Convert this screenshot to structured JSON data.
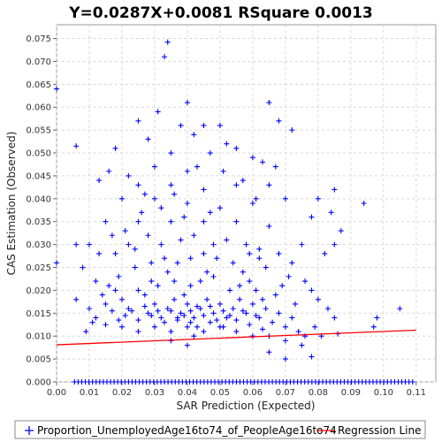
{
  "chart_data": {
    "type": "scatter",
    "title": "Y=0.0287X+0.0081    RSquare 0.0013",
    "xlabel": "SAR Prediction (Expected)",
    "ylabel": "CAS Estimation (Observed)",
    "xlim": [
      0.0,
      0.116
    ],
    "ylim": [
      0.0,
      0.078
    ],
    "xticks": [
      "0.00",
      "0.01",
      "0.02",
      "0.03",
      "0.04",
      "0.05",
      "0.06",
      "0.07",
      "0.08",
      "0.09",
      "0.10",
      "0.11"
    ],
    "xtick_values": [
      0.0,
      0.01,
      0.02,
      0.03,
      0.04,
      0.05,
      0.06,
      0.07,
      0.08,
      0.09,
      0.1,
      0.11
    ],
    "yticks": [
      "0.000",
      "0.005",
      "0.010",
      "0.015",
      "0.020",
      "0.025",
      "0.030",
      "0.035",
      "0.040",
      "0.045",
      "0.050",
      "0.055",
      "0.060",
      "0.065",
      "0.070",
      "0.075"
    ],
    "ytick_values": [
      0.0,
      0.005,
      0.01,
      0.015,
      0.02,
      0.025,
      0.03,
      0.035,
      0.04,
      0.045,
      0.05,
      0.055,
      0.06,
      0.065,
      0.07,
      0.075
    ],
    "grid": true,
    "legend_position": "bottom",
    "series": [
      {
        "name": "Proportion_UnemployedAge16to74_of_PeopleAge16to74",
        "kind": "scatter",
        "marker": "plus",
        "color": "#0000ff",
        "points": [
          [
            0.0,
            0.064
          ],
          [
            0.0,
            0.026
          ],
          [
            0.006,
            0.0515
          ],
          [
            0.034,
            0.0742
          ],
          [
            0.033,
            0.071
          ],
          [
            0.04,
            0.061
          ],
          [
            0.065,
            0.061
          ],
          [
            0.031,
            0.059
          ],
          [
            0.025,
            0.057
          ],
          [
            0.038,
            0.056
          ],
          [
            0.045,
            0.056
          ],
          [
            0.05,
            0.056
          ],
          [
            0.068,
            0.057
          ],
          [
            0.072,
            0.055
          ],
          [
            0.042,
            0.054
          ],
          [
            0.028,
            0.053
          ],
          [
            0.052,
            0.052
          ],
          [
            0.063,
            0.048
          ],
          [
            0.018,
            0.051
          ],
          [
            0.035,
            0.05
          ],
          [
            0.047,
            0.05
          ],
          [
            0.055,
            0.051
          ],
          [
            0.06,
            0.049
          ],
          [
            0.03,
            0.047
          ],
          [
            0.04,
            0.046
          ],
          [
            0.067,
            0.047
          ],
          [
            0.016,
            0.046
          ],
          [
            0.022,
            0.045
          ],
          [
            0.013,
            0.044
          ],
          [
            0.025,
            0.043
          ],
          [
            0.035,
            0.043
          ],
          [
            0.045,
            0.042
          ],
          [
            0.055,
            0.043
          ],
          [
            0.065,
            0.043
          ],
          [
            0.08,
            0.04
          ],
          [
            0.085,
            0.042
          ],
          [
            0.094,
            0.039
          ],
          [
            0.02,
            0.04
          ],
          [
            0.03,
            0.04
          ],
          [
            0.04,
            0.039
          ],
          [
            0.05,
            0.038
          ],
          [
            0.06,
            0.039
          ],
          [
            0.07,
            0.04
          ],
          [
            0.084,
            0.037
          ],
          [
            0.078,
            0.036
          ],
          [
            0.087,
            0.033
          ],
          [
            0.01,
            0.03
          ],
          [
            0.015,
            0.035
          ],
          [
            0.025,
            0.035
          ],
          [
            0.035,
            0.035
          ],
          [
            0.045,
            0.035
          ],
          [
            0.055,
            0.035
          ],
          [
            0.065,
            0.034
          ],
          [
            0.075,
            0.03
          ],
          [
            0.082,
            0.028
          ],
          [
            0.085,
            0.03
          ],
          [
            0.006,
            0.03
          ],
          [
            0.008,
            0.025
          ],
          [
            0.012,
            0.022
          ],
          [
            0.018,
            0.028
          ],
          [
            0.022,
            0.03
          ],
          [
            0.028,
            0.032
          ],
          [
            0.032,
            0.03
          ],
          [
            0.038,
            0.031
          ],
          [
            0.042,
            0.032
          ],
          [
            0.048,
            0.03
          ],
          [
            0.052,
            0.031
          ],
          [
            0.058,
            0.03
          ],
          [
            0.062,
            0.029
          ],
          [
            0.068,
            0.028
          ],
          [
            0.072,
            0.026
          ],
          [
            0.076,
            0.022
          ],
          [
            0.078,
            0.02
          ],
          [
            0.08,
            0.018
          ],
          [
            0.083,
            0.016
          ],
          [
            0.006,
            0.018
          ],
          [
            0.01,
            0.016
          ],
          [
            0.012,
            0.014
          ],
          [
            0.015,
            0.017
          ],
          [
            0.018,
            0.02
          ],
          [
            0.02,
            0.018
          ],
          [
            0.022,
            0.016
          ],
          [
            0.025,
            0.02
          ],
          [
            0.028,
            0.015
          ],
          [
            0.03,
            0.017
          ],
          [
            0.032,
            0.014
          ],
          [
            0.034,
            0.016
          ],
          [
            0.036,
            0.018
          ],
          [
            0.038,
            0.015
          ],
          [
            0.04,
            0.017
          ],
          [
            0.042,
            0.014
          ],
          [
            0.044,
            0.016
          ],
          [
            0.046,
            0.018
          ],
          [
            0.048,
            0.015
          ],
          [
            0.05,
            0.017
          ],
          [
            0.052,
            0.014
          ],
          [
            0.054,
            0.016
          ],
          [
            0.056,
            0.018
          ],
          [
            0.058,
            0.015
          ],
          [
            0.06,
            0.017
          ],
          [
            0.062,
            0.014
          ],
          [
            0.064,
            0.016
          ],
          [
            0.066,
            0.013
          ],
          [
            0.068,
            0.015
          ],
          [
            0.07,
            0.012
          ],
          [
            0.072,
            0.014
          ],
          [
            0.074,
            0.011
          ],
          [
            0.076,
            0.01
          ],
          [
            0.02,
            0.012
          ],
          [
            0.025,
            0.011
          ],
          [
            0.03,
            0.012
          ],
          [
            0.035,
            0.011
          ],
          [
            0.04,
            0.012
          ],
          [
            0.045,
            0.011
          ],
          [
            0.05,
            0.012
          ],
          [
            0.055,
            0.011
          ],
          [
            0.06,
            0.01
          ],
          [
            0.065,
            0.01
          ],
          [
            0.07,
            0.009
          ],
          [
            0.075,
            0.008
          ],
          [
            0.078,
            0.0055
          ],
          [
            0.07,
            0.005
          ],
          [
            0.065,
            0.0065
          ],
          [
            0.04,
            0.008
          ],
          [
            0.035,
            0.009
          ],
          [
            0.042,
            0.01
          ],
          [
            0.033,
            0.013
          ],
          [
            0.037,
            0.014
          ],
          [
            0.041,
            0.013
          ],
          [
            0.043,
            0.012
          ],
          [
            0.047,
            0.013
          ],
          [
            0.051,
            0.012
          ],
          [
            0.039,
            0.019
          ],
          [
            0.041,
            0.021
          ],
          [
            0.044,
            0.022
          ],
          [
            0.046,
            0.024
          ],
          [
            0.048,
            0.023
          ],
          [
            0.036,
            0.022
          ],
          [
            0.034,
            0.024
          ],
          [
            0.031,
            0.021
          ],
          [
            0.029,
            0.022
          ],
          [
            0.027,
            0.019
          ],
          [
            0.053,
            0.02
          ],
          [
            0.056,
            0.021
          ],
          [
            0.059,
            0.022
          ],
          [
            0.061,
            0.02
          ],
          [
            0.063,
            0.018
          ],
          [
            0.057,
            0.024
          ],
          [
            0.054,
            0.026
          ],
          [
            0.049,
            0.027
          ],
          [
            0.045,
            0.028
          ],
          [
            0.041,
            0.027
          ],
          [
            0.037,
            0.026
          ],
          [
            0.033,
            0.027
          ],
          [
            0.029,
            0.026
          ],
          [
            0.024,
            0.025
          ],
          [
            0.019,
            0.023
          ],
          [
            0.016,
            0.021
          ],
          [
            0.014,
            0.019
          ],
          [
            0.011,
            0.013
          ],
          [
            0.009,
            0.011
          ],
          [
            0.085,
            0.014
          ],
          [
            0.086,
            0.0105
          ],
          [
            0.097,
            0.012
          ],
          [
            0.098,
            0.014
          ],
          [
            0.105,
            0.016
          ],
          [
            0.079,
            0.012
          ],
          [
            0.081,
            0.01
          ],
          [
            0.073,
            0.017
          ],
          [
            0.067,
            0.019
          ],
          [
            0.069,
            0.021
          ],
          [
            0.071,
            0.023
          ],
          [
            0.064,
            0.025
          ],
          [
            0.062,
            0.027
          ],
          [
            0.059,
            0.028
          ],
          [
            0.043,
            0.047
          ],
          [
            0.036,
            0.041
          ],
          [
            0.032,
            0.038
          ],
          [
            0.027,
            0.041
          ],
          [
            0.051,
            0.046
          ],
          [
            0.057,
            0.044
          ],
          [
            0.061,
            0.04
          ],
          [
            0.047,
            0.037
          ],
          [
            0.039,
            0.036
          ],
          [
            0.026,
            0.037
          ],
          [
            0.021,
            0.033
          ],
          [
            0.017,
            0.032
          ],
          [
            0.013,
            0.028
          ],
          [
            0.024,
            0.029
          ],
          [
            0.039,
            0.0145
          ],
          [
            0.041,
            0.0155
          ],
          [
            0.043,
            0.0165
          ],
          [
            0.037,
            0.0135
          ],
          [
            0.035,
            0.0155
          ],
          [
            0.045,
            0.0145
          ],
          [
            0.047,
            0.0165
          ],
          [
            0.049,
            0.0135
          ],
          [
            0.051,
            0.0155
          ],
          [
            0.053,
            0.0145
          ],
          [
            0.031,
            0.0155
          ],
          [
            0.029,
            0.0145
          ],
          [
            0.027,
            0.0165
          ],
          [
            0.025,
            0.0135
          ],
          [
            0.023,
            0.0155
          ],
          [
            0.055,
            0.0135
          ],
          [
            0.057,
            0.0155
          ],
          [
            0.059,
            0.0125
          ],
          [
            0.061,
            0.0145
          ],
          [
            0.063,
            0.0115
          ],
          [
            0.021,
            0.0145
          ],
          [
            0.019,
            0.0135
          ],
          [
            0.017,
            0.0155
          ],
          [
            0.015,
            0.0125
          ]
        ]
      },
      {
        "name": "Regression Line",
        "kind": "line",
        "color": "#ff0000",
        "points": [
          [
            0.0,
            0.0081
          ],
          [
            0.11,
            0.0113
          ]
        ]
      }
    ]
  }
}
